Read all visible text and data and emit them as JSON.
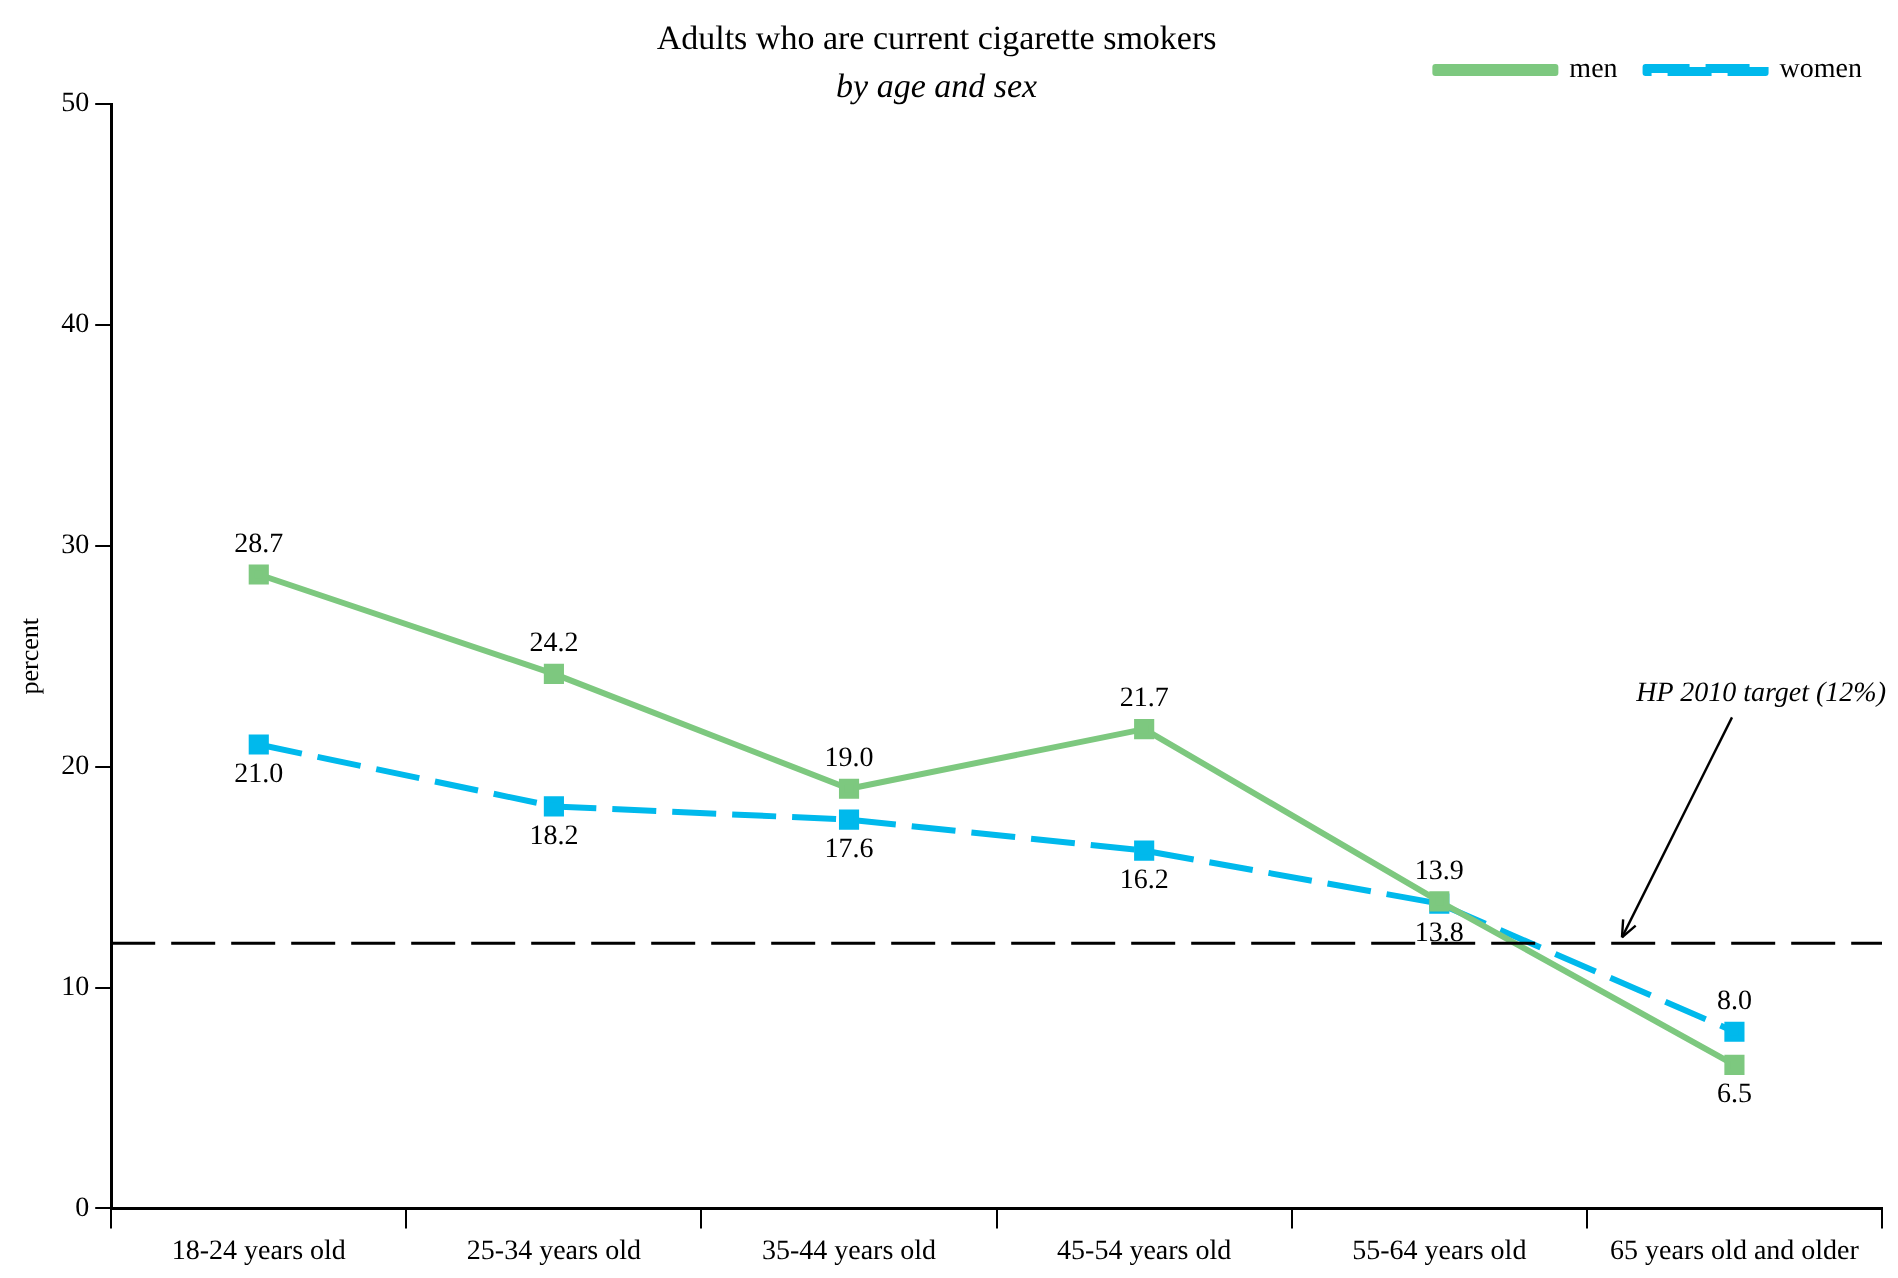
{
  "chart_data": {
    "type": "line",
    "title": "Adults who are current cigarette smokers",
    "subtitle": "by age and sex",
    "ylabel": "percent",
    "categories": [
      "18-24 years old",
      "25-34 years old",
      "35-44 years old",
      "45-54 years old",
      "55-64 years old",
      "65 years old and older"
    ],
    "series": [
      {
        "name": "men",
        "color": "#7dc87f",
        "line_style": "solid",
        "values": [
          28.7,
          24.2,
          19.0,
          21.7,
          13.9,
          6.5
        ],
        "value_labels": [
          "28.7",
          "24.2",
          "19.0",
          "21.7",
          "13.9",
          "6.5"
        ]
      },
      {
        "name": "women",
        "color": "#00b9ec",
        "line_style": "dashed",
        "values": [
          21.0,
          18.2,
          17.6,
          16.2,
          13.8,
          8.0
        ],
        "value_labels": [
          "21.0",
          "18.2",
          "17.6",
          "16.2",
          "13.8",
          "8.0"
        ]
      }
    ],
    "ylim": [
      0,
      50
    ],
    "yticks": [
      0,
      10,
      20,
      30,
      40,
      50
    ],
    "grid": false,
    "legend": "top right",
    "marker": "square",
    "ref_lines": [
      {
        "axis": "y",
        "value": 12,
        "label": "HP 2010 target (12%)",
        "color": "#000000",
        "line_style": "dashed"
      }
    ]
  }
}
